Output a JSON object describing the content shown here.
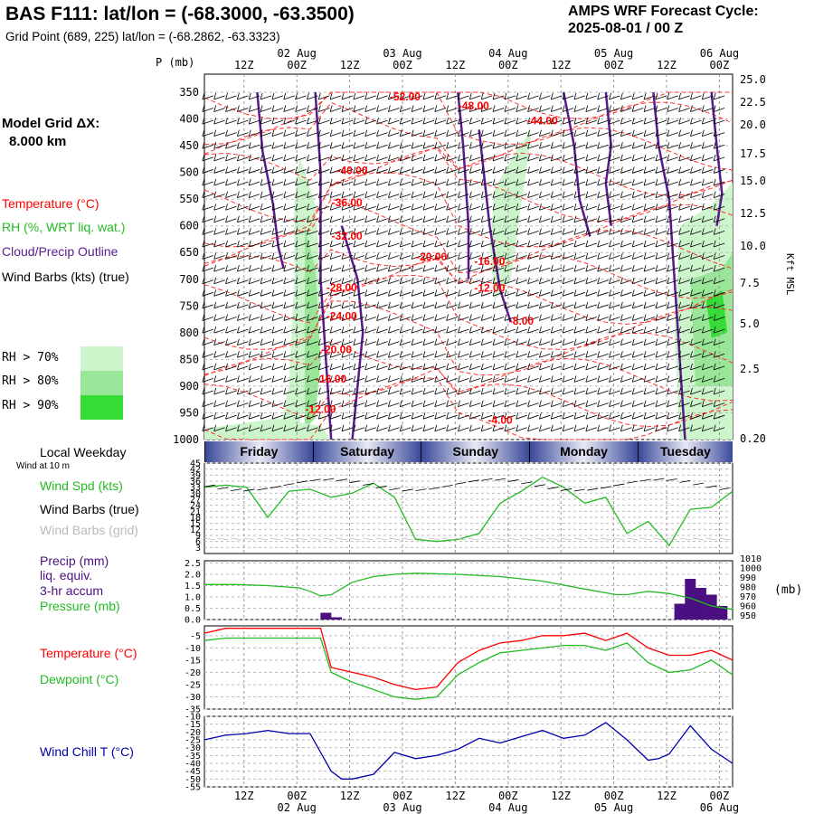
{
  "header": {
    "title": "BAS F111:  lat/lon = (-68.3000, -63.3500)",
    "subtitle": "Grid Point (689, 225) lat/lon = (-68.2862, -63.3323)",
    "cycle_line1": "AMPS WRF Forecast Cycle:",
    "cycle_line2": "2025-08-01 / 00  Z"
  },
  "side": {
    "model_grid": "Model Grid ΔX:",
    "grid_km": "8.000 km",
    "temperature": "Temperature (°C)",
    "rh": "RH (%, WRT liq. wat.)",
    "cloud": "Cloud/Precip Outline",
    "wind_barbs": "Wind Barbs (kts) (true)",
    "rh70": "RH > 70%",
    "rh80": "RH > 80%",
    "rh90": "RH > 90%",
    "local_weekday": "Local Weekday",
    "wind10m": "Wind at 10 m",
    "wind_spd": "Wind Spd (kts)",
    "wind_barbs_true": "Wind Barbs (true)",
    "wind_barbs_grid": "Wind Barbs (grid)",
    "precip": "Precip (mm)",
    "liq": "liq. equiv.",
    "accum": "3-hr accum",
    "pressure": "Pressure (mb)",
    "temp2": "Temperature (°C)",
    "dewpoint": "Dewpoint (°C)",
    "windchill": "Wind Chill T (°C)",
    "p_unit": "P (mb)",
    "kft": "Kft MSL",
    "mb_unit": "(mb)"
  },
  "colors": {
    "temperature": "#ff0000",
    "rh70": "#ccf5cc",
    "rh80": "#99e699",
    "rh90": "#33dd33",
    "cloud": "#5a1a8c",
    "wind_spd": "#22bb22",
    "precip": "#4b0f82",
    "windchill": "#0000aa"
  },
  "time_axis": {
    "top_ticks": [
      "12Z",
      "00Z",
      "12Z",
      "00Z",
      "12Z",
      "00Z",
      "12Z",
      "00Z",
      "12Z",
      "00Z"
    ],
    "top_dates": [
      "02 Aug",
      "03 Aug",
      "04 Aug",
      "05 Aug",
      "06 Aug"
    ],
    "weekdays": [
      "Friday",
      "Saturday",
      "Sunday",
      "Monday",
      "Tuesday"
    ]
  },
  "chart_data": [
    {
      "type": "area",
      "panel": "cross-section",
      "y_pressure_ticks": [
        "350",
        "400",
        "450",
        "500",
        "550",
        "600",
        "650",
        "700",
        "750",
        "800",
        "850",
        "900",
        "950",
        "1000"
      ],
      "y_height_ticks": [
        "25.0",
        "22.5",
        "20.0",
        "17.5",
        "15.0",
        "12.5",
        "10.0",
        "7.5",
        "5.0",
        "2.5",
        "0.20"
      ],
      "temperature_labels": [
        {
          "text": "-52.00",
          "t": 38,
          "p": 365
        },
        {
          "text": "-48.00",
          "t": 51,
          "p": 382
        },
        {
          "text": "-44.00",
          "t": 64,
          "p": 410
        },
        {
          "text": "-40.00",
          "t": 28,
          "p": 503
        },
        {
          "text": "-36.00",
          "t": 27,
          "p": 563
        },
        {
          "text": "-32.00",
          "t": 27,
          "p": 626
        },
        {
          "text": "-20.00",
          "t": 43,
          "p": 665
        },
        {
          "text": "-16.00",
          "t": 54,
          "p": 673
        },
        {
          "text": "-12.00",
          "t": 54,
          "p": 723
        },
        {
          "text": "-28.00",
          "t": 26,
          "p": 722
        },
        {
          "text": "-24.00",
          "t": 26,
          "p": 776
        },
        {
          "text": "-8.00",
          "t": 60,
          "p": 785
        },
        {
          "text": "-20.00",
          "t": 25,
          "p": 838
        },
        {
          "text": "-16.00",
          "t": 24,
          "p": 893
        },
        {
          "text": "-12.00",
          "t": 22,
          "p": 950
        },
        {
          "text": "-4.00",
          "t": 56,
          "p": 970
        }
      ]
    },
    {
      "type": "line",
      "panel": "wind",
      "ylabel": "",
      "y_ticks": [
        3,
        6,
        9,
        12,
        15,
        18,
        21,
        24,
        27,
        30,
        33,
        36,
        39,
        42,
        45
      ],
      "ylim": [
        3,
        45
      ],
      "x": [
        0,
        4,
        8,
        12,
        16,
        20,
        24,
        28,
        32,
        36,
        40,
        44,
        48,
        52,
        56,
        60,
        64,
        68,
        72,
        76,
        80,
        84,
        88,
        92,
        96,
        100
      ],
      "series": [
        {
          "name": "Wind Spd (kts)",
          "values": [
            33,
            34,
            33,
            18,
            31,
            32,
            28,
            30,
            35,
            28,
            7,
            6,
            7,
            10,
            25,
            31,
            38,
            33,
            25,
            28,
            10,
            16,
            4,
            22,
            23,
            31
          ]
        }
      ]
    },
    {
      "type": "line",
      "panel": "precip-pressure",
      "y_left_ticks": [
        "0.0",
        "0.5",
        "1.0",
        "1.5",
        "2.0",
        "2.5"
      ],
      "y_right_ticks": [
        "950",
        "960",
        "970",
        "980",
        "990",
        "1000",
        "1010"
      ],
      "precip_bars": [
        {
          "t": 23,
          "value": 0.3
        },
        {
          "t": 25,
          "value": 0.1
        },
        {
          "t": 90,
          "value": 0.7
        },
        {
          "t": 92,
          "value": 1.8
        },
        {
          "t": 94,
          "value": 1.4
        },
        {
          "t": 96,
          "value": 1.1
        },
        {
          "t": 98,
          "value": 0.6
        }
      ],
      "x": [
        0,
        6,
        12,
        18,
        20,
        22,
        24,
        28,
        32,
        36,
        40,
        48,
        56,
        64,
        72,
        78,
        80,
        84,
        88,
        92,
        96,
        100
      ],
      "series": [
        {
          "name": "Pressure (mb)",
          "values": [
            1.55,
            1.55,
            1.5,
            1.4,
            1.25,
            1.05,
            1.1,
            1.65,
            1.9,
            2.0,
            2.05,
            2.0,
            1.9,
            1.7,
            1.35,
            1.1,
            1.1,
            1.25,
            1.15,
            0.95,
            0.6,
            0.45
          ]
        }
      ]
    },
    {
      "type": "line",
      "panel": "temp-dew",
      "y_ticks": [
        -35,
        -30,
        -25,
        -20,
        -15,
        -10,
        -5
      ],
      "ylim": [
        -35,
        -1
      ],
      "x": [
        0,
        4,
        8,
        12,
        16,
        20,
        22,
        24,
        28,
        32,
        36,
        40,
        44,
        48,
        52,
        56,
        60,
        64,
        68,
        72,
        76,
        80,
        84,
        88,
        92,
        96,
        100
      ],
      "series": [
        {
          "name": "Temperature (°C)",
          "values": [
            -4,
            -2,
            -2,
            -2,
            -2,
            -2,
            -2,
            -18,
            -20,
            -22,
            -25,
            -27,
            -26,
            -16,
            -11,
            -8,
            -7,
            -5,
            -5,
            -4,
            -7,
            -4,
            -10,
            -13,
            -13,
            -11,
            -15
          ]
        },
        {
          "name": "Dewpoint (°C)",
          "values": [
            -7,
            -6,
            -6,
            -6,
            -6,
            -6,
            -6,
            -20,
            -24,
            -27,
            -30,
            -31,
            -30,
            -21,
            -16,
            -12,
            -11,
            -10,
            -9,
            -9,
            -11,
            -8,
            -16,
            -20,
            -19,
            -15,
            -21
          ]
        }
      ]
    },
    {
      "type": "line",
      "panel": "windchill",
      "y_ticks": [
        -55,
        -50,
        -45,
        -40,
        -35,
        -30,
        -25,
        -20,
        -15,
        -10
      ],
      "ylim": [
        -55,
        -10
      ],
      "x": [
        0,
        4,
        8,
        12,
        16,
        20,
        24,
        26,
        28,
        32,
        36,
        40,
        44,
        48,
        52,
        56,
        60,
        64,
        68,
        72,
        76,
        80,
        84,
        86,
        88,
        92,
        96,
        100
      ],
      "series": [
        {
          "name": "Wind Chill T (°C)",
          "values": [
            -25,
            -22,
            -21,
            -19,
            -21,
            -21,
            -45,
            -50,
            -50,
            -47,
            -33,
            -37,
            -35,
            -31,
            -24,
            -27,
            -23,
            -19,
            -24,
            -22,
            -14,
            -25,
            -38,
            -37,
            -34,
            -16,
            -31,
            -40
          ]
        }
      ]
    }
  ]
}
